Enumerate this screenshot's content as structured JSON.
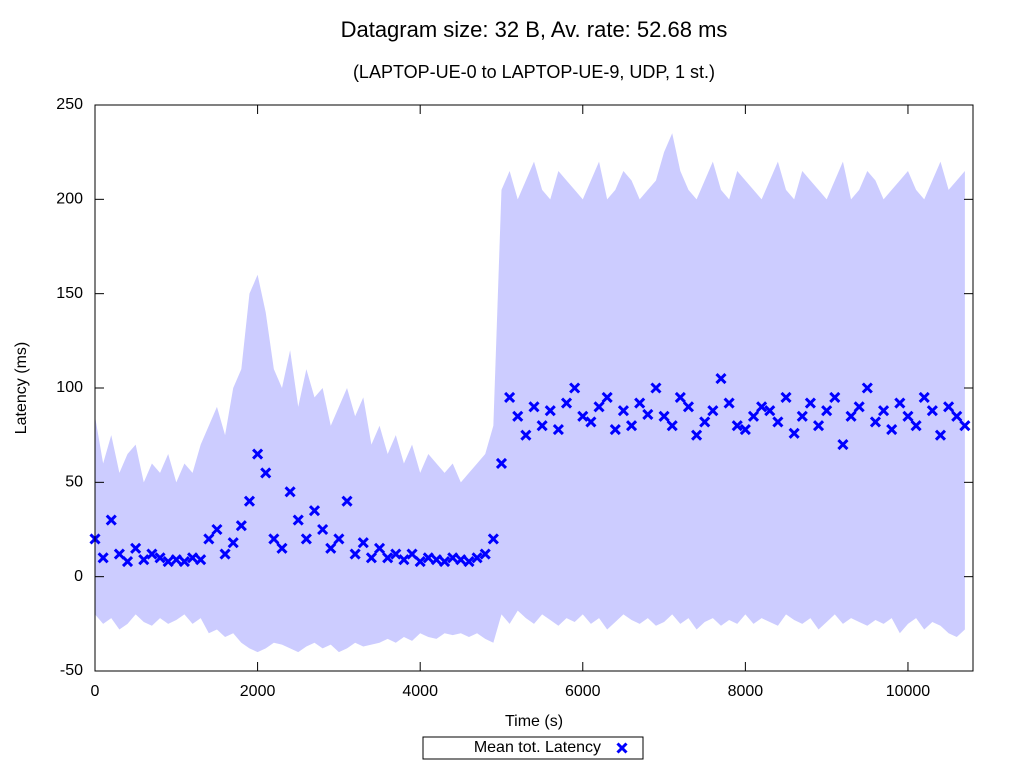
{
  "chart_data": {
    "type": "scatter",
    "title": "Datagram size: 32 B, Av. rate: 52.68 ms",
    "subtitle": "(LAPTOP-UE-0 to LAPTOP-UE-9, UDP, 1 st.)",
    "x_label": "Time (s)",
    "y_label": "Latency (ms)",
    "x": [
      0,
      100,
      200,
      300,
      400,
      500,
      600,
      700,
      800,
      900,
      1000,
      1100,
      1200,
      1300,
      1400,
      1500,
      1600,
      1700,
      1800,
      1900,
      2000,
      2100,
      2200,
      2300,
      2400,
      2500,
      2600,
      2700,
      2800,
      2900,
      3000,
      3100,
      3200,
      3300,
      3400,
      3500,
      3600,
      3700,
      3800,
      3900,
      4000,
      4100,
      4200,
      4300,
      4400,
      4500,
      4600,
      4700,
      4800,
      4900,
      5000,
      5100,
      5200,
      5300,
      5400,
      5500,
      5600,
      5700,
      5800,
      5900,
      6000,
      6100,
      6200,
      6300,
      6400,
      6500,
      6600,
      6700,
      6800,
      6900,
      7000,
      7100,
      7200,
      7300,
      7400,
      7500,
      7600,
      7700,
      7800,
      7900,
      8000,
      8100,
      8200,
      8300,
      8400,
      8500,
      8600,
      8700,
      8800,
      8900,
      9000,
      9100,
      9200,
      9300,
      9400,
      9500,
      9600,
      9700,
      9800,
      9900,
      10000,
      10100,
      10200,
      10300,
      10400,
      10500,
      10600,
      10700
    ],
    "series": [
      {
        "name": "Mean tot. Latency",
        "color": "#0000ff",
        "values": [
          20,
          10,
          30,
          12,
          8,
          15,
          9,
          12,
          10,
          8,
          9,
          8,
          10,
          9,
          20,
          25,
          12,
          18,
          27,
          40,
          65,
          55,
          20,
          15,
          45,
          30,
          20,
          35,
          25,
          15,
          20,
          40,
          12,
          18,
          10,
          15,
          10,
          12,
          9,
          12,
          8,
          10,
          9,
          8,
          10,
          9,
          8,
          10,
          12,
          20,
          60,
          95,
          85,
          75,
          90,
          80,
          88,
          78,
          92,
          100,
          85,
          82,
          90,
          95,
          78,
          88,
          80,
          92,
          86,
          100,
          85,
          80,
          95,
          90,
          75,
          82,
          88,
          105,
          92,
          80,
          78,
          85,
          90,
          88,
          82,
          95,
          76,
          85,
          92,
          80,
          88,
          95,
          70,
          85,
          90,
          100,
          82,
          88,
          78,
          92,
          85,
          80,
          95,
          88,
          75,
          90,
          85,
          80
        ]
      }
    ],
    "band": {
      "color": "#ccccff",
      "upper": [
        85,
        60,
        75,
        55,
        65,
        70,
        50,
        60,
        55,
        65,
        50,
        60,
        55,
        70,
        80,
        90,
        75,
        100,
        110,
        150,
        160,
        140,
        110,
        100,
        120,
        90,
        110,
        95,
        100,
        80,
        90,
        100,
        85,
        95,
        70,
        80,
        65,
        75,
        60,
        70,
        55,
        65,
        60,
        55,
        60,
        50,
        55,
        60,
        65,
        80,
        205,
        215,
        200,
        210,
        220,
        205,
        200,
        215,
        210,
        205,
        200,
        210,
        220,
        200,
        205,
        215,
        210,
        200,
        205,
        210,
        225,
        235,
        215,
        205,
        200,
        210,
        220,
        205,
        200,
        215,
        210,
        205,
        200,
        210,
        220,
        205,
        200,
        215,
        210,
        205,
        200,
        210,
        220,
        200,
        205,
        215,
        210,
        200,
        205,
        210,
        215,
        205,
        200,
        210,
        220,
        205,
        210,
        215
      ],
      "lower": [
        -20,
        -25,
        -22,
        -28,
        -25,
        -20,
        -24,
        -26,
        -22,
        -25,
        -23,
        -20,
        -25,
        -22,
        -30,
        -28,
        -32,
        -30,
        -35,
        -38,
        -40,
        -38,
        -35,
        -36,
        -38,
        -40,
        -37,
        -35,
        -38,
        -36,
        -40,
        -38,
        -35,
        -37,
        -36,
        -35,
        -33,
        -35,
        -32,
        -34,
        -30,
        -32,
        -33,
        -30,
        -31,
        -30,
        -32,
        -30,
        -33,
        -35,
        -20,
        -25,
        -18,
        -22,
        -25,
        -20,
        -23,
        -26,
        -22,
        -24,
        -20,
        -25,
        -22,
        -28,
        -24,
        -20,
        -23,
        -25,
        -22,
        -26,
        -24,
        -20,
        -25,
        -22,
        -28,
        -24,
        -22,
        -26,
        -23,
        -25,
        -20,
        -25,
        -22,
        -24,
        -26,
        -20,
        -23,
        -25,
        -22,
        -28,
        -24,
        -20,
        -25,
        -22,
        -24,
        -26,
        -23,
        -25,
        -22,
        -30,
        -25,
        -22,
        -28,
        -24,
        -26,
        -30,
        -32,
        -28
      ]
    },
    "xlim": [
      0,
      10800
    ],
    "xticks": [
      0,
      2000,
      4000,
      6000,
      8000,
      10000
    ],
    "ylim": [
      -50,
      250
    ],
    "yticks": [
      -50,
      0,
      50,
      100,
      150,
      200,
      250
    ],
    "grid": false
  }
}
